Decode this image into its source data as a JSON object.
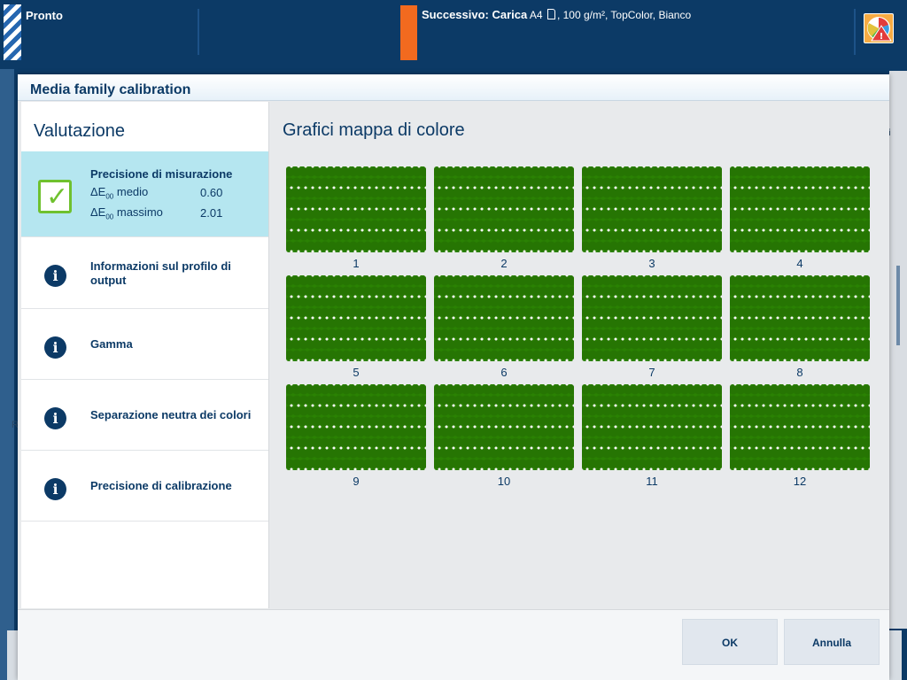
{
  "status": {
    "state": "Pronto",
    "next_label": "Successivo: Carica",
    "next_detail_paper": "A4",
    "next_detail_rest": ", 100 g/m², TopColor, Bianco"
  },
  "background": {
    "right_text": "ri",
    "left_text": "R"
  },
  "dialog": {
    "title": "Media family calibration",
    "left_title": "Valutazione",
    "right_title": "Grafici mappa di colore",
    "items": [
      {
        "label": "Precisione di misurazione",
        "status": "ok",
        "metrics": [
          {
            "name": "ΔE",
            "sub": "00",
            "suffix": " medio",
            "value": "0.60"
          },
          {
            "name": "ΔE",
            "sub": "00",
            "suffix": " massimo",
            "value": "2.01"
          }
        ]
      },
      {
        "label": "Informazioni sul profilo di output",
        "status": "info"
      },
      {
        "label": "Gamma",
        "status": "info"
      },
      {
        "label": "Separazione neutra dei colori",
        "status": "info"
      },
      {
        "label": "Precisione di calibrazione",
        "status": "info"
      }
    ],
    "charts": [
      "1",
      "2",
      "3",
      "4",
      "5",
      "6",
      "7",
      "8",
      "9",
      "10",
      "11",
      "12"
    ],
    "buttons": {
      "ok": "OK",
      "cancel": "Annulla"
    }
  },
  "colors": {
    "brand_navy": "#0c3a66",
    "active_item": "#b5e6f0",
    "check_green": "#6fc12e",
    "chart_green": "#2a8203",
    "alert_orange": "#f26a1f"
  },
  "icons": [
    "check-icon",
    "info-icon",
    "document-icon",
    "alert-icon"
  ]
}
